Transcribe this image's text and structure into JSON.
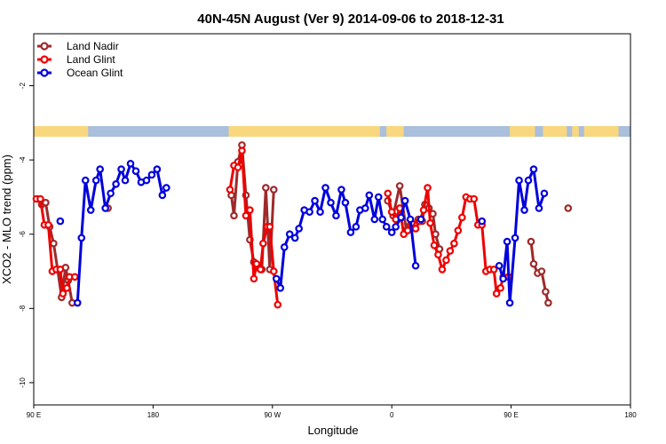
{
  "chart_data": {
    "type": "line",
    "title": "40N-45N August (Ver 9)   2014-09-06 to 2018-12-31",
    "xlabel": "Longitude",
    "ylabel": "XCO2 - MLO trend (ppm)",
    "x_ticks": [
      {
        "value": 90,
        "label": "90 E"
      },
      {
        "value": 180,
        "label": "180"
      },
      {
        "value": 270,
        "label": "90 W"
      },
      {
        "value": 360,
        "label": "0"
      },
      {
        "value": 450,
        "label": "90 E"
      },
      {
        "value": 540,
        "label": "180"
      }
    ],
    "y_ticks": [
      -2,
      -4,
      -6,
      -8,
      -10
    ],
    "xlim": [
      90,
      540
    ],
    "ylim": [
      -10.6,
      -0.6
    ],
    "grid": false,
    "legend_position": "top-left",
    "land_ocean_strip": {
      "land_color": "#f9d77f",
      "ocean_color": "#a9bfdb",
      "land_ranges": [
        [
          90,
          131
        ],
        [
          237,
          351
        ],
        [
          356,
          369
        ],
        [
          449,
          468
        ],
        [
          474,
          492
        ],
        [
          496,
          501
        ],
        [
          505,
          531
        ]
      ]
    },
    "series": [
      {
        "name": "Land Nadir",
        "color": "#9e2a2b",
        "segments": [
          [
            [
              93,
              -5.05
            ],
            [
              96,
              -5.2
            ],
            [
              99,
              -5.15
            ],
            [
              102,
              -5.8
            ],
            [
              105,
              -6.25
            ],
            [
              108,
              -6.95
            ],
            [
              111,
              -7.7
            ],
            [
              114,
              -6.9
            ],
            [
              116,
              -7.25
            ],
            [
              119,
              -7.85
            ]
          ],
          [
            [
              146,
              -5.3
            ]
          ],
          [
            [
              239,
              -4.95
            ],
            [
              241,
              -5.5
            ],
            [
              244,
              -4.05
            ],
            [
              247,
              -3.6
            ],
            [
              250,
              -4.95
            ],
            [
              253,
              -6.15
            ],
            [
              256,
              -6.75
            ],
            [
              259,
              -6.9
            ],
            [
              262,
              -6.95
            ],
            [
              265,
              -4.75
            ],
            [
              268,
              -6.95
            ],
            [
              271,
              -4.8
            ]
          ],
          [
            [
              357,
              -5.1
            ],
            [
              361,
              -5.5
            ],
            [
              366,
              -4.7
            ],
            [
              371,
              -5.9
            ],
            [
              374,
              -5.75
            ],
            [
              377,
              -5.75
            ],
            [
              380,
              -5.6
            ],
            [
              383,
              -5.65
            ],
            [
              385,
              -5.2
            ],
            [
              388,
              -5.3
            ],
            [
              391,
              -5.45
            ],
            [
              393,
              -6.0
            ],
            [
              396,
              -6.4
            ]
          ],
          [
            [
              465,
              -6.2
            ],
            [
              467,
              -6.8
            ],
            [
              470,
              -7.05
            ],
            [
              473,
              -7.0
            ],
            [
              476,
              -7.55
            ],
            [
              478,
              -7.85
            ]
          ],
          [
            [
              493,
              -5.3
            ]
          ]
        ]
      },
      {
        "name": "Land Glint",
        "color": "#ee0000",
        "segments": [
          [
            [
              92,
              -5.05
            ],
            [
              95,
              -5.05
            ],
            [
              98,
              -5.75
            ],
            [
              101,
              -5.75
            ],
            [
              104,
              -7.0
            ],
            [
              107,
              -6.95
            ],
            [
              110,
              -6.95
            ],
            [
              112,
              -7.6
            ],
            [
              115,
              -7.45
            ],
            [
              117,
              -7.15
            ],
            [
              121,
              -7.15
            ]
          ],
          [
            [
              238,
              -4.8
            ],
            [
              241,
              -4.15
            ],
            [
              244,
              -4.2
            ],
            [
              247,
              -3.75
            ],
            [
              250,
              -5.5
            ],
            [
              253,
              -5.35
            ],
            [
              256,
              -7.2
            ],
            [
              258,
              -6.8
            ],
            [
              261,
              -6.95
            ],
            [
              263,
              -6.25
            ],
            [
              266,
              -5.8
            ],
            [
              268,
              -5.8
            ],
            [
              271,
              -7.0
            ],
            [
              274,
              -7.9
            ]
          ],
          [
            [
              357,
              -4.9
            ],
            [
              360,
              -5.4
            ],
            [
              363,
              -5.6
            ],
            [
              366,
              -5.3
            ],
            [
              369,
              -6.0
            ],
            [
              372,
              -5.9
            ],
            [
              375,
              -5.7
            ],
            [
              378,
              -5.85
            ],
            [
              381,
              -5.65
            ],
            [
              384,
              -5.35
            ],
            [
              387,
              -4.75
            ],
            [
              389,
              -5.7
            ],
            [
              392,
              -6.3
            ],
            [
              395,
              -6.55
            ],
            [
              398,
              -6.95
            ],
            [
              401,
              -6.7
            ],
            [
              404,
              -6.45
            ],
            [
              407,
              -6.25
            ],
            [
              410,
              -5.9
            ],
            [
              413,
              -5.55
            ],
            [
              416,
              -5.0
            ],
            [
              419,
              -5.05
            ],
            [
              422,
              -5.05
            ],
            [
              425,
              -5.75
            ],
            [
              428,
              -5.75
            ],
            [
              431,
              -7.0
            ],
            [
              434,
              -6.95
            ],
            [
              437,
              -6.95
            ],
            [
              439,
              -7.6
            ],
            [
              442,
              -7.45
            ],
            [
              444,
              -7.15
            ],
            [
              448,
              -7.15
            ]
          ]
        ]
      },
      {
        "name": "Ocean Glint",
        "color": "#0000dd",
        "segments": [
          [
            [
              110,
              -5.65
            ]
          ],
          [
            [
              123,
              -7.85
            ],
            [
              126,
              -6.1
            ],
            [
              129,
              -4.55
            ],
            [
              133,
              -5.35
            ],
            [
              137,
              -4.55
            ],
            [
              140,
              -4.25
            ],
            [
              144,
              -5.3
            ],
            [
              148,
              -4.9
            ],
            [
              152,
              -4.65
            ],
            [
              156,
              -4.25
            ],
            [
              159,
              -4.55
            ],
            [
              163,
              -4.1
            ],
            [
              167,
              -4.3
            ],
            [
              171,
              -4.6
            ],
            [
              175,
              -4.55
            ],
            [
              179,
              -4.4
            ],
            [
              183,
              -4.25
            ],
            [
              187,
              -4.95
            ],
            [
              190,
              -4.75
            ]
          ],
          [
            [
              273,
              -7.2
            ],
            [
              276,
              -7.45
            ],
            [
              279,
              -6.35
            ],
            [
              283,
              -6.0
            ],
            [
              287,
              -6.1
            ],
            [
              290,
              -5.85
            ],
            [
              294,
              -5.35
            ],
            [
              298,
              -5.4
            ],
            [
              302,
              -5.1
            ],
            [
              306,
              -5.4
            ],
            [
              310,
              -4.75
            ],
            [
              314,
              -5.15
            ],
            [
              318,
              -5.5
            ],
            [
              322,
              -4.8
            ],
            [
              325,
              -5.15
            ],
            [
              329,
              -5.95
            ],
            [
              333,
              -5.8
            ],
            [
              336,
              -5.35
            ],
            [
              340,
              -5.3
            ],
            [
              343,
              -4.95
            ],
            [
              347,
              -5.6
            ],
            [
              350,
              -5.0
            ],
            [
              353,
              -5.6
            ],
            [
              356,
              -5.8
            ],
            [
              360,
              -5.95
            ],
            [
              363,
              -5.8
            ],
            [
              367,
              -5.55
            ],
            [
              370,
              -5.1
            ],
            [
              374,
              -5.6
            ],
            [
              378,
              -6.85
            ]
          ],
          [
            [
              382,
              -5.6
            ]
          ],
          [
            [
              428,
              -5.65
            ]
          ],
          [
            [
              441,
              -6.85
            ],
            [
              444,
              -7.2
            ],
            [
              447,
              -6.2
            ],
            [
              449,
              -7.85
            ],
            [
              453,
              -6.1
            ],
            [
              456,
              -4.55
            ],
            [
              460,
              -5.35
            ],
            [
              463,
              -4.55
            ],
            [
              467,
              -4.25
            ],
            [
              471,
              -5.3
            ],
            [
              475,
              -4.9
            ]
          ]
        ]
      }
    ]
  }
}
